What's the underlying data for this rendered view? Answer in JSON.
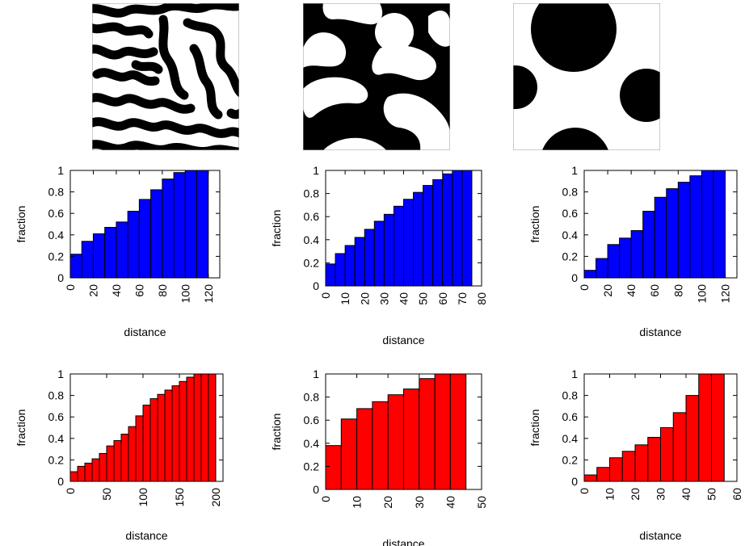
{
  "chart_data": [
    {
      "type": "bar",
      "row": 0,
      "col": 0,
      "color": "#0000ff",
      "xlabel": "distance",
      "ylabel": "fraction",
      "xlim": [
        0,
        130
      ],
      "ylim": [
        0,
        1
      ],
      "xticks": [
        0,
        20,
        40,
        60,
        80,
        100,
        120
      ],
      "yticks": [
        0,
        0.2,
        0.4,
        0.6,
        0.8,
        1
      ],
      "bin_width": 10,
      "x": [
        10,
        20,
        30,
        40,
        50,
        60,
        70,
        80,
        90,
        100,
        110,
        120
      ],
      "values": [
        0.22,
        0.34,
        0.41,
        0.47,
        0.52,
        0.62,
        0.73,
        0.82,
        0.92,
        0.98,
        1.0,
        1.0
      ]
    },
    {
      "type": "bar",
      "row": 0,
      "col": 1,
      "color": "#0000ff",
      "xlabel": "distance",
      "ylabel": "fraction",
      "xlim": [
        0,
        80
      ],
      "ylim": [
        0,
        1
      ],
      "xticks": [
        0,
        10,
        20,
        30,
        40,
        50,
        60,
        70,
        80
      ],
      "yticks": [
        0,
        0.2,
        0.4,
        0.6,
        0.8,
        1
      ],
      "bin_width": 5,
      "x": [
        5,
        10,
        15,
        20,
        25,
        30,
        35,
        40,
        45,
        50,
        55,
        60,
        65,
        70,
        75
      ],
      "values": [
        0.19,
        0.28,
        0.35,
        0.42,
        0.49,
        0.56,
        0.62,
        0.69,
        0.75,
        0.81,
        0.87,
        0.92,
        0.97,
        1.0,
        1.0
      ]
    },
    {
      "type": "bar",
      "row": 0,
      "col": 2,
      "color": "#0000ff",
      "xlabel": "distance",
      "ylabel": "fraction",
      "xlim": [
        0,
        130
      ],
      "ylim": [
        0,
        1
      ],
      "xticks": [
        0,
        20,
        40,
        60,
        80,
        100,
        120
      ],
      "yticks": [
        0,
        0.2,
        0.4,
        0.6,
        0.8,
        1
      ],
      "bin_width": 10,
      "x": [
        10,
        20,
        30,
        40,
        50,
        60,
        70,
        80,
        90,
        100,
        110,
        120
      ],
      "values": [
        0.07,
        0.18,
        0.31,
        0.37,
        0.44,
        0.62,
        0.75,
        0.83,
        0.89,
        0.95,
        1.0,
        1.0
      ]
    },
    {
      "type": "bar",
      "row": 1,
      "col": 0,
      "color": "#ff0000",
      "xlabel": "distance",
      "ylabel": "fraction",
      "xlim": [
        0,
        210
      ],
      "ylim": [
        0,
        1
      ],
      "xticks": [
        0,
        50,
        100,
        150,
        200
      ],
      "yticks": [
        0,
        0.2,
        0.4,
        0.6,
        0.8,
        1
      ],
      "bin_width": 10,
      "x": [
        10,
        20,
        30,
        40,
        50,
        60,
        70,
        80,
        90,
        100,
        110,
        120,
        130,
        140,
        150,
        160,
        170,
        180,
        190,
        200
      ],
      "values": [
        0.09,
        0.14,
        0.17,
        0.21,
        0.26,
        0.33,
        0.38,
        0.44,
        0.51,
        0.61,
        0.71,
        0.77,
        0.81,
        0.85,
        0.89,
        0.93,
        0.97,
        1.0,
        1.0,
        1.0
      ]
    },
    {
      "type": "bar",
      "row": 1,
      "col": 1,
      "color": "#ff0000",
      "xlabel": "distance",
      "ylabel": "fraction",
      "xlim": [
        0,
        50
      ],
      "ylim": [
        0,
        1
      ],
      "xticks": [
        0,
        10,
        20,
        30,
        40,
        50
      ],
      "yticks": [
        0,
        0.2,
        0.4,
        0.6,
        0.8,
        1
      ],
      "bin_width": 5,
      "x": [
        5,
        10,
        15,
        20,
        25,
        30,
        35,
        40,
        45
      ],
      "values": [
        0.38,
        0.61,
        0.7,
        0.76,
        0.82,
        0.87,
        0.96,
        1.0,
        1.0
      ]
    },
    {
      "type": "bar",
      "row": 1,
      "col": 2,
      "color": "#ff0000",
      "xlabel": "distance",
      "ylabel": "fraction",
      "xlim": [
        0,
        60
      ],
      "ylim": [
        0,
        1
      ],
      "xticks": [
        0,
        10,
        20,
        30,
        40,
        50,
        60
      ],
      "yticks": [
        0,
        0.2,
        0.4,
        0.6,
        0.8,
        1
      ],
      "bin_width": 5,
      "x": [
        5,
        10,
        15,
        20,
        25,
        30,
        35,
        40,
        45,
        50,
        55
      ],
      "values": [
        0.06,
        0.13,
        0.22,
        0.28,
        0.34,
        0.41,
        0.5,
        0.64,
        0.8,
        1.0,
        1.0
      ]
    }
  ]
}
